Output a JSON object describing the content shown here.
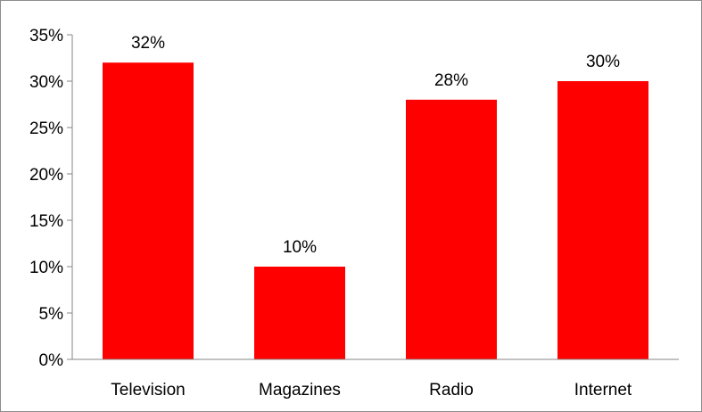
{
  "chart_data": {
    "type": "bar",
    "categories": [
      "Television",
      "Magazines",
      "Radio",
      "Internet"
    ],
    "values": [
      32,
      10,
      28,
      30
    ],
    "data_labels": [
      "32%",
      "10%",
      "28%",
      "30%"
    ],
    "ylim": [
      0,
      35
    ],
    "yticks": [
      0,
      5,
      10,
      15,
      20,
      25,
      30,
      35
    ],
    "ytick_labels": [
      "0%",
      "5%",
      "10%",
      "15%",
      "20%",
      "25%",
      "30%",
      "35%"
    ],
    "title": "",
    "xlabel": "",
    "ylabel": "",
    "grid": false,
    "legend": "none",
    "bar_color": "#ff0000"
  }
}
